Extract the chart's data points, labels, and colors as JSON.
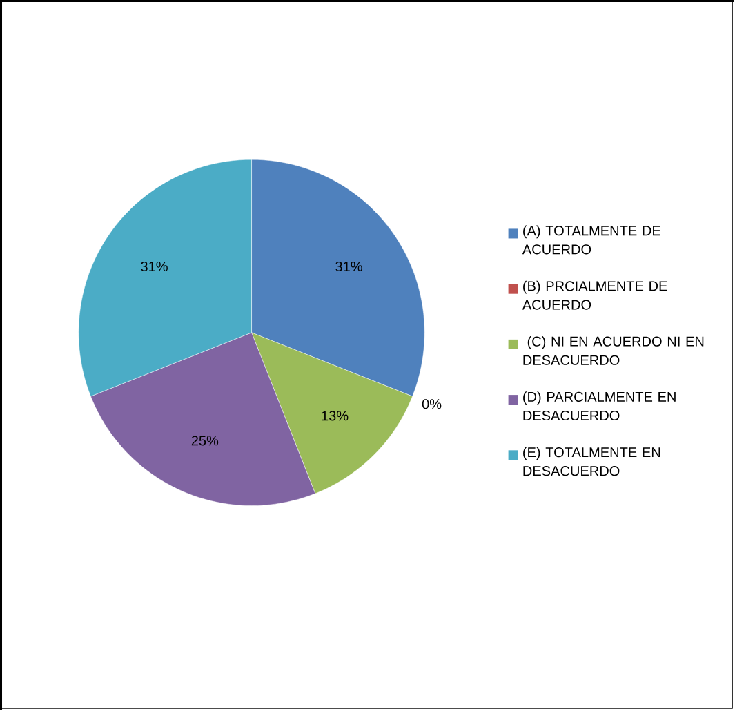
{
  "chart_data": {
    "type": "pie",
    "categories": [
      "(A) TOTALMENTE DE ACUERDO",
      "(B) PRCIALMENTE DE ACUERDO",
      " (C) NI EN ACUERDO NI EN DESACUERDO",
      "(D) PARCIALMENTE EN DESACUERDO",
      "(E) TOTALMENTE EN DESACUERDO"
    ],
    "values": [
      31,
      0,
      13,
      25,
      31
    ],
    "colors": [
      "#4f81bd",
      "#c0504d",
      "#9bbb59",
      "#8064a2",
      "#4bacc6"
    ],
    "value_labels": [
      "31%",
      "0%",
      "13%",
      "25%",
      "31%"
    ],
    "legend": "right"
  }
}
